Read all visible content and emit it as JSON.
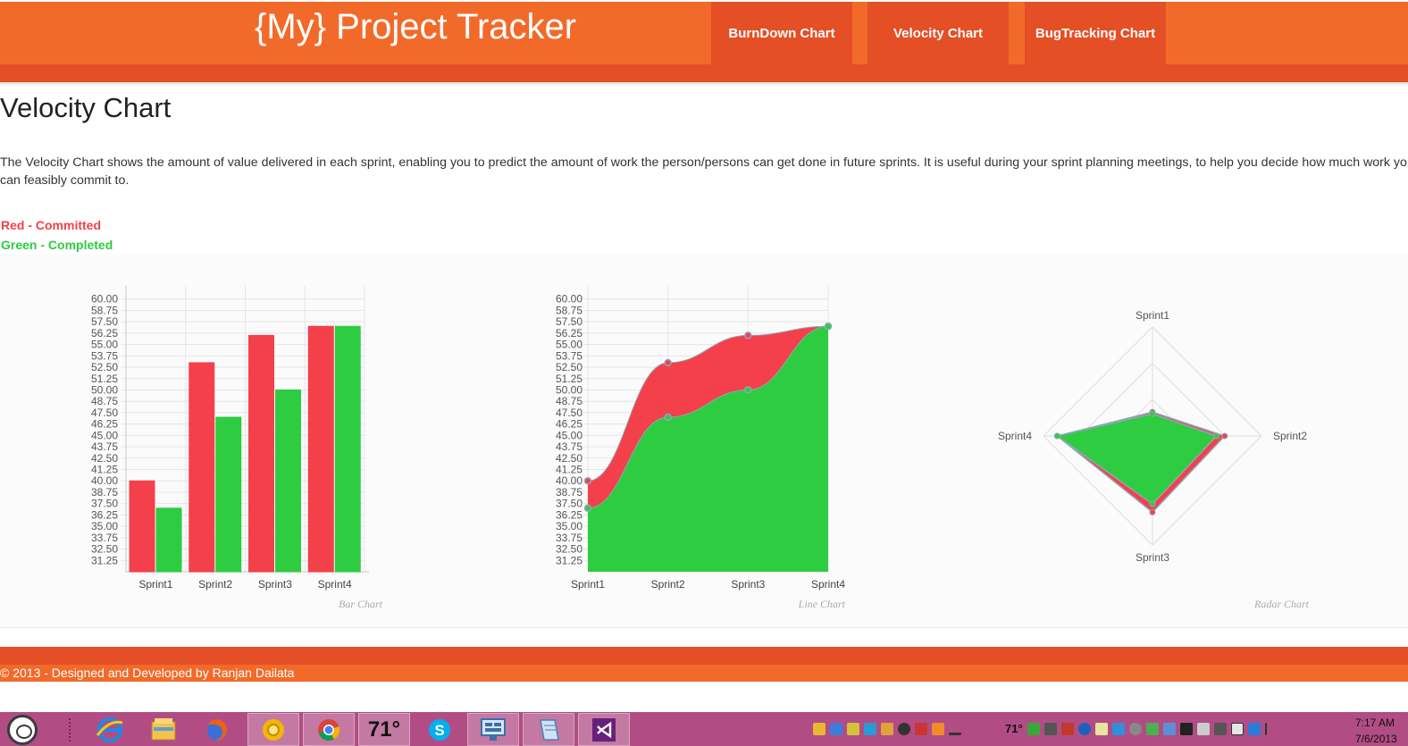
{
  "site": {
    "title": "{My} Project Tracker",
    "nav": [
      {
        "label": "BurnDown Chart"
      },
      {
        "label": "Velocity Chart"
      },
      {
        "label": "BugTracking Chart"
      }
    ]
  },
  "main": {
    "page_title": "Velocity Chart",
    "description_line1": "The Velocity Chart shows the amount of value delivered in each sprint, enabling you to predict the amount of work the person/persons can get done in future sprints. It is useful during your sprint planning meetings, to help you decide how much work yo",
    "description_line2": "can feasibly commit to.",
    "legend": {
      "committed": "Red - Committed",
      "completed": "Green - Completed"
    }
  },
  "colors": {
    "header_orange": "#f26a2a",
    "header_dark_orange": "#e44f26",
    "committed_red": "#f4404a",
    "completed_green": "#2ecc40",
    "point_stroke": "#8fa7b8",
    "taskbar": "#b14d84"
  },
  "chart_data": [
    {
      "type": "bar",
      "caption": "Bar Chart",
      "categories": [
        "Sprint1",
        "Sprint2",
        "Sprint3",
        "Sprint4"
      ],
      "series": [
        {
          "name": "Committed",
          "color": "#f4404a",
          "values": [
            40,
            53,
            56,
            57
          ]
        },
        {
          "name": "Completed",
          "color": "#2ecc40",
          "values": [
            37,
            47,
            50,
            57
          ]
        }
      ],
      "ylim": [
        30,
        61.25
      ],
      "y_ticks": [
        "31.25",
        "32.50",
        "33.75",
        "35.00",
        "36.25",
        "37.50",
        "38.75",
        "40.00",
        "41.25",
        "42.50",
        "43.75",
        "45.00",
        "46.25",
        "47.50",
        "48.75",
        "50.00",
        "51.25",
        "52.50",
        "53.75",
        "55.00",
        "56.25",
        "57.50",
        "58.75",
        "60.00"
      ],
      "grid": true
    },
    {
      "type": "area",
      "caption": "Line Chart",
      "categories": [
        "Sprint1",
        "Sprint2",
        "Sprint3",
        "Sprint4"
      ],
      "series": [
        {
          "name": "Committed",
          "color": "#f4404a",
          "values": [
            40,
            53,
            56,
            57
          ]
        },
        {
          "name": "Completed",
          "color": "#2ecc40",
          "values": [
            37,
            47,
            50,
            57
          ]
        }
      ],
      "ylim": [
        30,
        61.25
      ],
      "y_ticks": [
        "31.25",
        "32.50",
        "33.75",
        "35.00",
        "36.25",
        "37.50",
        "38.75",
        "40.00",
        "41.25",
        "42.50",
        "43.75",
        "45.00",
        "46.25",
        "47.50",
        "48.75",
        "50.00",
        "51.25",
        "52.50",
        "53.75",
        "55.00",
        "56.25",
        "57.50",
        "58.75",
        "60.00"
      ],
      "grid": true
    },
    {
      "type": "radar",
      "caption": "Radar Chart",
      "categories": [
        "Sprint1",
        "Sprint2",
        "Sprint3",
        "Sprint4"
      ],
      "series": [
        {
          "name": "Committed",
          "color": "#f4404a",
          "values": [
            40,
            53,
            56,
            57
          ]
        },
        {
          "name": "Completed",
          "color": "#2ecc40",
          "values": [
            37,
            47,
            50,
            57
          ]
        }
      ],
      "scale_max": 60,
      "grid": true
    }
  ],
  "footer": {
    "text": "© 2013 - Designed and Developed by Ranjan Dailata"
  },
  "taskbar": {
    "weather_temp": "71°",
    "tray_temp": "71°",
    "clock_time": "7:17 AM",
    "clock_date": "7/6/2013"
  }
}
